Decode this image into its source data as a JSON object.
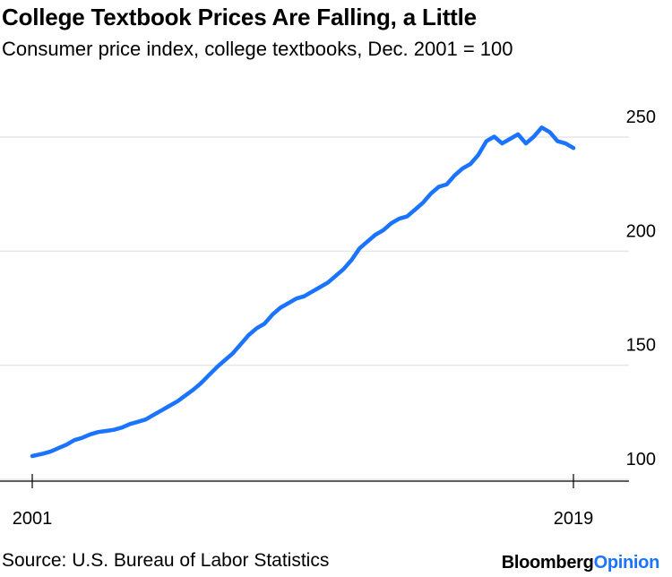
{
  "header": {
    "title": "College Textbook Prices Are Falling, a Little",
    "subtitle": "Consumer price index, college textbooks, Dec. 2001 = 100"
  },
  "footer": {
    "source": "Source: U.S. Bureau of Labor Statistics",
    "brand_main": "Bloomberg",
    "brand_accent": "Opinion"
  },
  "chart_data": {
    "type": "line",
    "title": "College Textbook Prices Are Falling, a Little",
    "subtitle": "Consumer price index, college textbooks, Dec. 2001 = 100",
    "xlabel": "",
    "ylabel": "",
    "x_tick_labels": [
      "2001",
      "2019"
    ],
    "y_ticks": [
      100,
      150,
      200,
      250
    ],
    "ylim": [
      89,
      250
    ],
    "xlim": [
      2001.9,
      2020.0
    ],
    "grid": true,
    "legend": "none",
    "line_color": "#1a74ff",
    "series": [
      {
        "x": [
          2001.92,
          2002.25,
          2002.5,
          2002.75,
          2003.0,
          2003.25,
          2003.5,
          2003.75,
          2004.0,
          2004.25,
          2004.5,
          2004.75,
          2005.0,
          2005.25,
          2005.5,
          2005.75,
          2006.0,
          2006.25,
          2006.5,
          2006.75,
          2007.0,
          2007.25,
          2007.5,
          2007.75,
          2008.0,
          2008.25,
          2008.5,
          2008.75,
          2009.0,
          2009.25,
          2009.5,
          2009.75,
          2010.0,
          2010.25,
          2010.5,
          2010.75,
          2011.0,
          2011.25,
          2011.5,
          2011.75,
          2012.0,
          2012.25,
          2012.5,
          2012.75,
          2013.0,
          2013.25,
          2013.5,
          2013.75,
          2014.0,
          2014.25,
          2014.5,
          2014.75,
          2015.0,
          2015.25,
          2015.5,
          2015.75,
          2016.0,
          2016.25,
          2016.5,
          2016.75,
          2017.0,
          2017.25,
          2017.5,
          2017.75,
          2018.0,
          2018.25,
          2018.5,
          2018.75,
          2019.0
        ],
        "y": [
          100,
          101,
          102,
          103.5,
          105,
          107,
          108,
          109.5,
          110.5,
          111,
          111.5,
          112.5,
          114,
          115,
          116,
          118,
          120,
          122,
          124,
          126.5,
          129,
          132,
          135.5,
          139,
          142,
          145,
          149,
          153,
          156,
          158,
          162,
          165,
          167,
          169,
          170,
          172,
          174,
          176,
          179,
          182,
          186,
          191,
          194,
          197,
          199,
          202,
          204,
          205,
          208,
          211,
          215,
          218,
          219,
          223,
          226,
          228,
          232,
          238,
          240,
          237,
          239,
          241,
          237,
          240,
          244,
          242,
          238,
          237,
          235
        ]
      }
    ]
  }
}
